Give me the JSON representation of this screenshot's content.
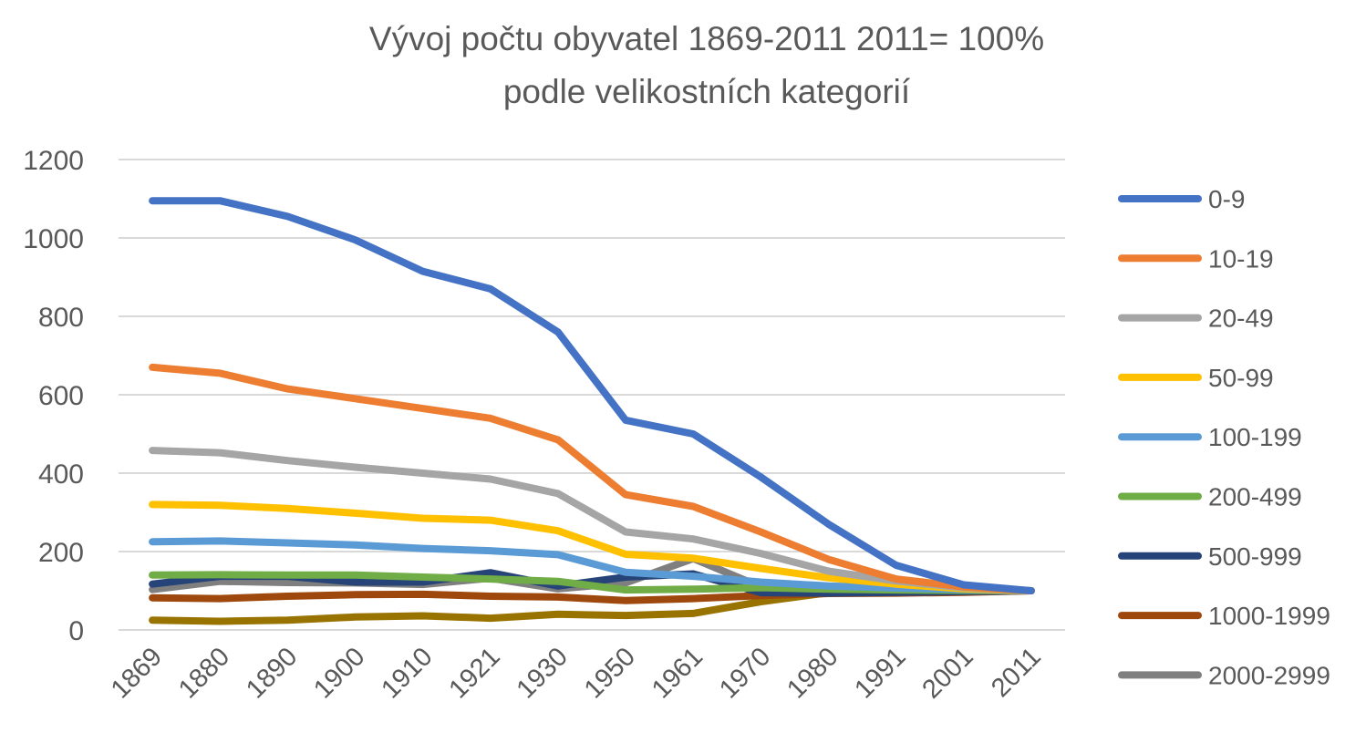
{
  "chart_data": {
    "type": "line",
    "title": "Vývoj počtu obyvatel 1869-2011 2011= 100%",
    "subtitle": "podle velikostních kategorií",
    "categories": [
      "1869",
      "1880",
      "1890",
      "1900",
      "1910",
      "1921",
      "1930",
      "1950",
      "1961",
      "1970",
      "1980",
      "1991",
      "2001",
      "2011"
    ],
    "ylim": [
      0,
      1200
    ],
    "yticks": [
      "0",
      "200",
      "400",
      "600",
      "800",
      "1000",
      "1200"
    ],
    "grid": true,
    "legend_position": "right",
    "series": [
      {
        "name": "0-9",
        "color": "#4472c4",
        "values": [
          1095,
          1095,
          1055,
          995,
          915,
          870,
          760,
          535,
          500,
          390,
          270,
          165,
          115,
          100
        ]
      },
      {
        "name": "10-19",
        "color": "#ed7d31",
        "values": [
          670,
          655,
          615,
          590,
          565,
          540,
          485,
          345,
          315,
          250,
          180,
          130,
          110,
          100
        ]
      },
      {
        "name": "20-49",
        "color": "#a5a5a5",
        "values": [
          458,
          452,
          432,
          415,
          400,
          385,
          348,
          250,
          232,
          195,
          150,
          125,
          108,
          100
        ]
      },
      {
        "name": "50-99",
        "color": "#ffc000",
        "values": [
          320,
          318,
          310,
          298,
          285,
          280,
          253,
          193,
          183,
          157,
          133,
          117,
          105,
          100
        ]
      },
      {
        "name": "100-199",
        "color": "#5b9bd5",
        "values": [
          225,
          227,
          222,
          217,
          208,
          202,
          192,
          147,
          137,
          122,
          112,
          107,
          103,
          100
        ]
      },
      {
        "name": "200-499",
        "color": "#70ad47",
        "values": [
          140,
          141,
          140,
          140,
          135,
          130,
          124,
          102,
          104,
          108,
          104,
          102,
          101,
          100
        ]
      },
      {
        "name": "500-999",
        "color": "#264478",
        "values": [
          117,
          137,
          137,
          122,
          122,
          146,
          112,
          135,
          143,
          95,
          94,
          96,
          98,
          100
        ]
      },
      {
        "name": "1000-1999",
        "color": "#9e480e",
        "values": [
          82,
          80,
          86,
          90,
          91,
          86,
          84,
          75,
          80,
          88,
          93,
          94,
          96,
          100
        ]
      },
      {
        "name": "2000-2999",
        "color": "#7f7f7f",
        "values": [
          103,
          124,
          121,
          120,
          116,
          132,
          105,
          120,
          182,
          110,
          100,
          101,
          101,
          100
        ]
      },
      {
        "name": "",
        "color": "#997300",
        "values": [
          25,
          22,
          25,
          33,
          36,
          30,
          40,
          37,
          42,
          72,
          95,
          103,
          102,
          100
        ]
      }
    ]
  }
}
